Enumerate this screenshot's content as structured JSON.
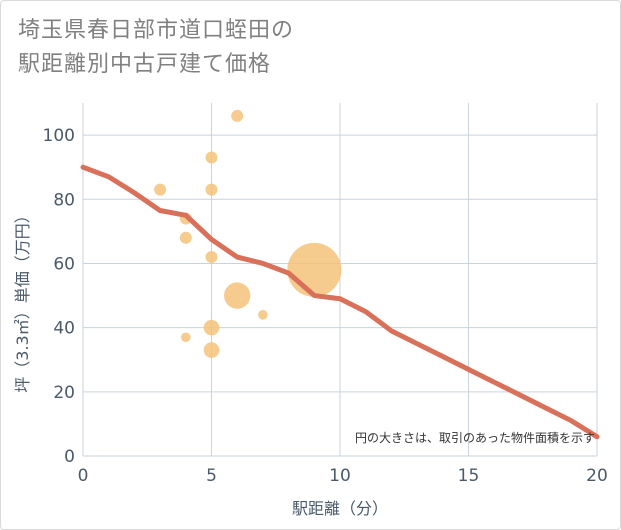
{
  "title_lines": [
    "埼玉県春日部市道口蛭田の",
    "駅距離別中古戸建て価格"
  ],
  "chart_data": {
    "type": "scatter",
    "title": "埼玉県春日部市道口蛭田の駅距離別中古戸建て価格",
    "xlabel": "駅距離（分）",
    "ylabel": "坪（3.3㎡）単価（万円）",
    "xlim": [
      0,
      20
    ],
    "ylim": [
      0,
      110
    ],
    "xticks": [
      0,
      5,
      10,
      15,
      20
    ],
    "yticks": [
      0,
      20,
      40,
      60,
      80,
      100
    ],
    "xtick_labels": [
      "0",
      "5",
      "10",
      "15",
      "20"
    ],
    "ytick_labels": [
      "0",
      "20",
      "40",
      "60",
      "80",
      "100"
    ],
    "grid": true,
    "note": "円の大きさは、取引のあった物件面積を示す",
    "colors": {
      "bubble": "#f5c27a",
      "line": "#d9705a",
      "grid": "#c9d3dc",
      "tick": "#4a5a6a"
    },
    "bubbles": [
      {
        "x": 3,
        "y": 83,
        "size": 1
      },
      {
        "x": 4,
        "y": 74,
        "size": 1
      },
      {
        "x": 4,
        "y": 68,
        "size": 1
      },
      {
        "x": 4,
        "y": 37,
        "size": 0.8
      },
      {
        "x": 5,
        "y": 93,
        "size": 1
      },
      {
        "x": 5,
        "y": 83,
        "size": 1
      },
      {
        "x": 5,
        "y": 62,
        "size": 1
      },
      {
        "x": 5,
        "y": 40,
        "size": 1.3
      },
      {
        "x": 5,
        "y": 33,
        "size": 1.3
      },
      {
        "x": 6,
        "y": 106,
        "size": 1
      },
      {
        "x": 6,
        "y": 50,
        "size": 2.2
      },
      {
        "x": 7,
        "y": 44,
        "size": 0.8
      },
      {
        "x": 9,
        "y": 58,
        "size": 4.5
      }
    ],
    "trend_line": {
      "x": [
        0,
        1,
        2,
        3,
        4,
        5,
        6,
        7,
        8,
        9,
        10,
        11,
        12,
        13,
        14,
        15,
        16,
        17,
        18,
        19,
        20
      ],
      "y": [
        90,
        87,
        82,
        76.5,
        75,
        67.5,
        62,
        60,
        57,
        50,
        49,
        45,
        39,
        35,
        31,
        27,
        23,
        19,
        15,
        11,
        6
      ]
    }
  }
}
